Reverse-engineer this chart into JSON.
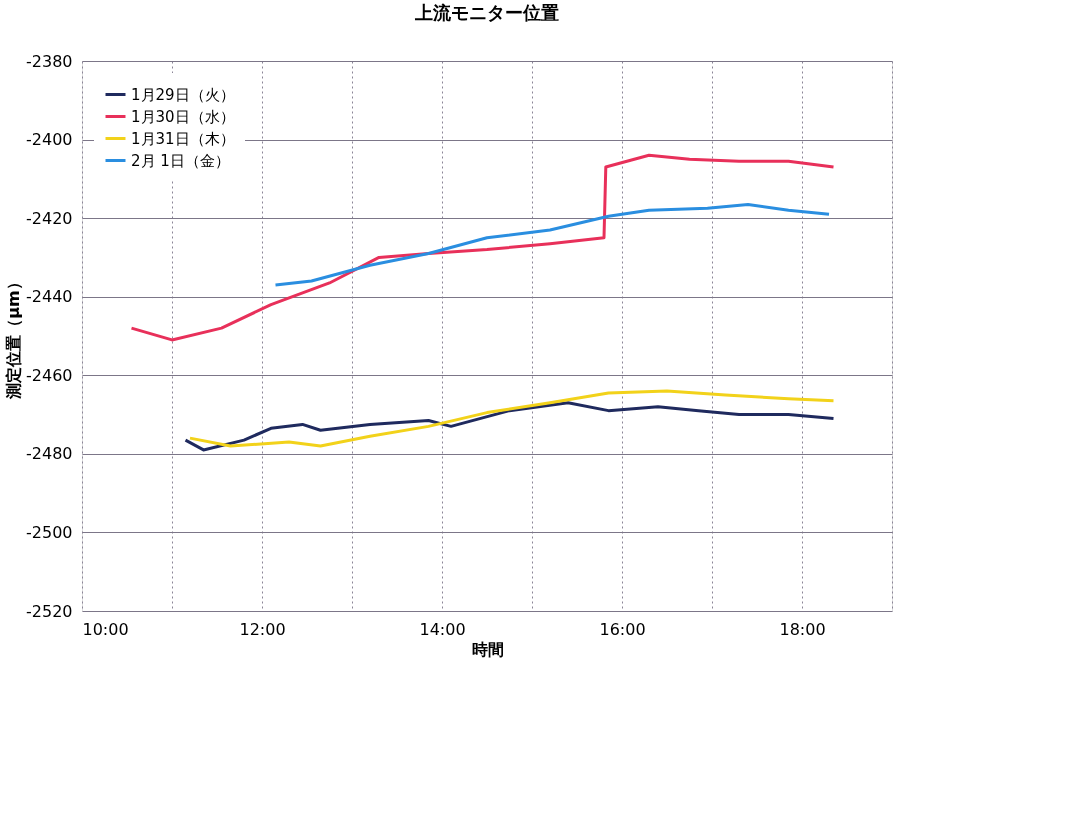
{
  "chart_data": {
    "type": "line",
    "title": "上流モニター位置",
    "xlabel": "時間",
    "ylabel": "測定位置（μm）",
    "xlim": [
      10,
      19
    ],
    "ylim": [
      -2520,
      -2380
    ],
    "xticks": [
      {
        "value": 10,
        "label": "10:00"
      },
      {
        "value": 11,
        "label": null
      },
      {
        "value": 12,
        "label": "12:00"
      },
      {
        "value": 13,
        "label": null
      },
      {
        "value": 14,
        "label": "14:00"
      },
      {
        "value": 15,
        "label": null
      },
      {
        "value": 16,
        "label": "16:00"
      },
      {
        "value": 17,
        "label": null
      },
      {
        "value": 18,
        "label": "18:00"
      },
      {
        "value": 19,
        "label": null
      }
    ],
    "yticks": [
      -2520,
      -2500,
      -2480,
      -2460,
      -2440,
      -2420,
      -2400,
      -2380
    ],
    "grid": true,
    "legend": "top left",
    "marker": "none",
    "line_style": "solid",
    "series": [
      {
        "name": "1月29日（火）",
        "color": "#1f2a5e",
        "x": [
          11.15,
          11.35,
          11.8,
          12.1,
          12.45,
          12.65,
          13.2,
          13.85,
          14.1,
          14.75,
          15.4,
          15.85,
          16.4,
          16.85,
          17.3,
          17.85,
          18.35
        ],
        "values": [
          -2476.5,
          -2479,
          -2476.5,
          -2473.5,
          -2472.5,
          -2474,
          -2472.5,
          -2471.5,
          -2473,
          -2469,
          -2467,
          -2469,
          -2468,
          -2469,
          -2470,
          -2470,
          -2471
        ]
      },
      {
        "name": "1月30日（水）",
        "color": "#e8305a",
        "x": [
          10.55,
          11.0,
          11.55,
          12.1,
          12.75,
          13.3,
          13.85,
          14.5,
          15.2,
          15.8,
          15.82,
          16.3,
          16.75,
          17.3,
          17.85,
          18.35
        ],
        "values": [
          -2448,
          -2451,
          -2448,
          -2442,
          -2436.5,
          -2430,
          -2429,
          -2428,
          -2426.5,
          -2425,
          -2407,
          -2404,
          -2405,
          -2405.5,
          -2405.5,
          -2407
        ]
      },
      {
        "name": "1月31日（木）",
        "color": "#f2d21a",
        "x": [
          11.2,
          11.65,
          12.3,
          12.65,
          13.2,
          13.85,
          14.5,
          15.2,
          15.85,
          16.5,
          17.15,
          17.85,
          18.35
        ],
        "values": [
          -2476,
          -2478,
          -2477,
          -2478,
          -2475.5,
          -2473,
          -2469.5,
          -2467,
          -2464.5,
          -2464,
          -2465,
          -2466,
          -2466.5
        ]
      },
      {
        "name": "2月 1日（金）",
        "color": "#2a8ee0",
        "x": [
          12.15,
          12.55,
          13.2,
          13.85,
          14.5,
          15.2,
          15.85,
          16.3,
          16.95,
          17.4,
          17.85,
          18.3
        ],
        "values": [
          -2437,
          -2436,
          -2432,
          -2429,
          -2425,
          -2423,
          -2419.5,
          -2418,
          -2417.5,
          -2416.5,
          -2418,
          -2419
        ]
      }
    ]
  }
}
